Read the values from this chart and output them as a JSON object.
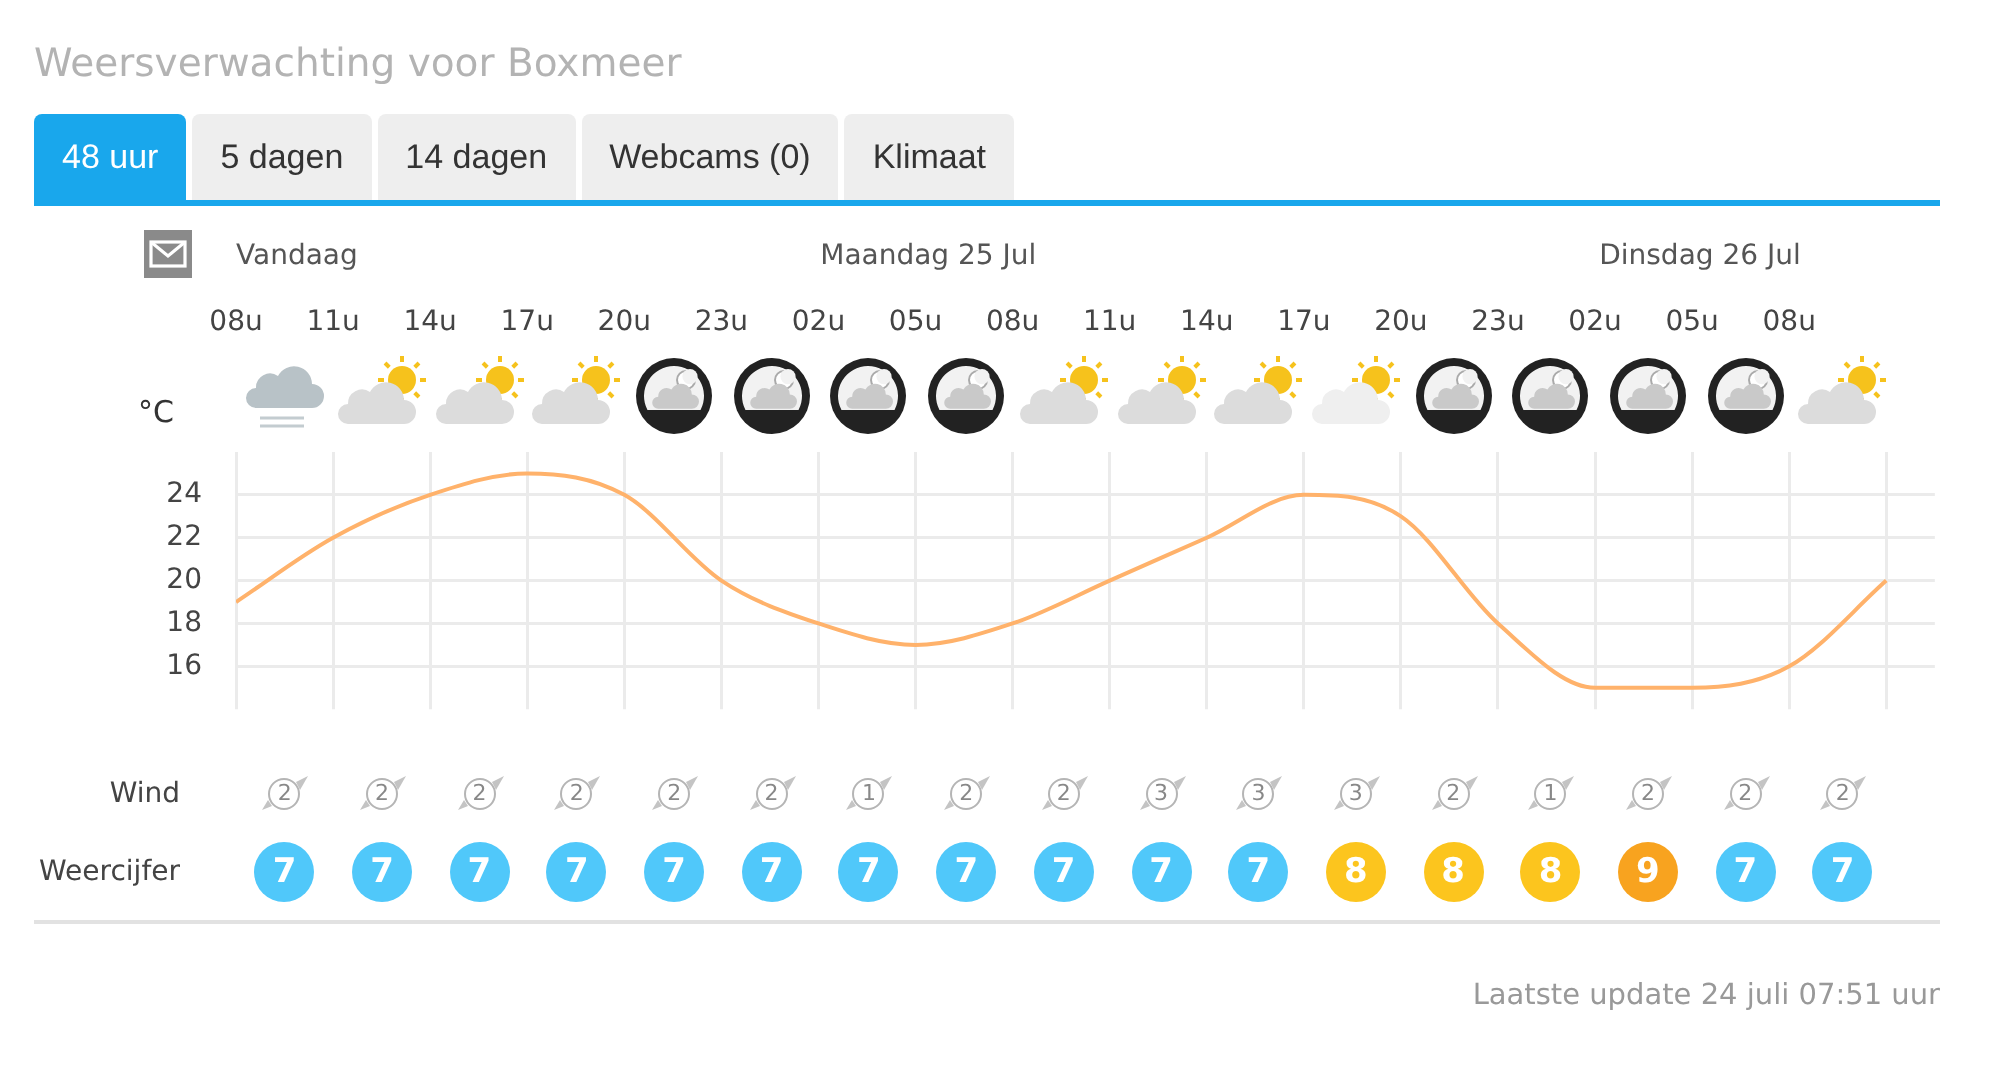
{
  "chart_data": [
    {
      "type": "line",
      "title": "Weersverwachting voor Boxmeer",
      "ylabel": "°C",
      "categories": [
        "08u",
        "11u",
        "14u",
        "17u",
        "20u",
        "23u",
        "02u",
        "05u",
        "08u",
        "11u",
        "14u",
        "17u",
        "20u",
        "23u",
        "02u",
        "05u",
        "08u",
        null
      ],
      "series": [
        {
          "color": "#ffb26b",
          "values": [
            19,
            22,
            24,
            25,
            24,
            20,
            18,
            17,
            18,
            20,
            22,
            24,
            23,
            18,
            15,
            15,
            16,
            20
          ]
        }
      ],
      "ylim": [
        14,
        26
      ],
      "yticks": [
        16,
        18,
        20,
        22,
        24
      ],
      "grid": true,
      "legend": false,
      "marker": "none",
      "line_style": "solid",
      "annotations": [
        "48 uur",
        "5 dagen",
        "14 dagen",
        "Webcams (0)",
        "Klimaat",
        "Vandaag",
        "Maandag 25 Jul",
        "Dinsdag 26 Jul"
      ]
    },
    {
      "type": "other",
      "series": [
        {
          "name": "Wind",
          "values": [
            2,
            2,
            2,
            2,
            2,
            2,
            1,
            2,
            2,
            3,
            3,
            3,
            2,
            1,
            2,
            2,
            2
          ]
        }
      ],
      "data_labels": true
    },
    {
      "type": "other",
      "series": [
        {
          "name": "Weercijfer",
          "values": [
            7,
            7,
            7,
            7,
            7,
            7,
            7,
            7,
            7,
            7,
            7,
            8,
            8,
            8,
            9,
            7,
            7
          ],
          "colors": [
            "#50c8fa",
            "#50c8fa",
            "#50c8fa",
            "#50c8fa",
            "#50c8fa",
            "#50c8fa",
            "#50c8fa",
            "#50c8fa",
            "#50c8fa",
            "#50c8fa",
            "#50c8fa",
            "#fcc51e",
            "#fcc51e",
            "#fcc51e",
            "#f8a31f",
            "#50c8fa",
            "#50c8fa"
          ]
        }
      ],
      "data_labels": true,
      "annotations": [
        "Laatste update 24 juli 07:51 uur"
      ]
    }
  ]
}
